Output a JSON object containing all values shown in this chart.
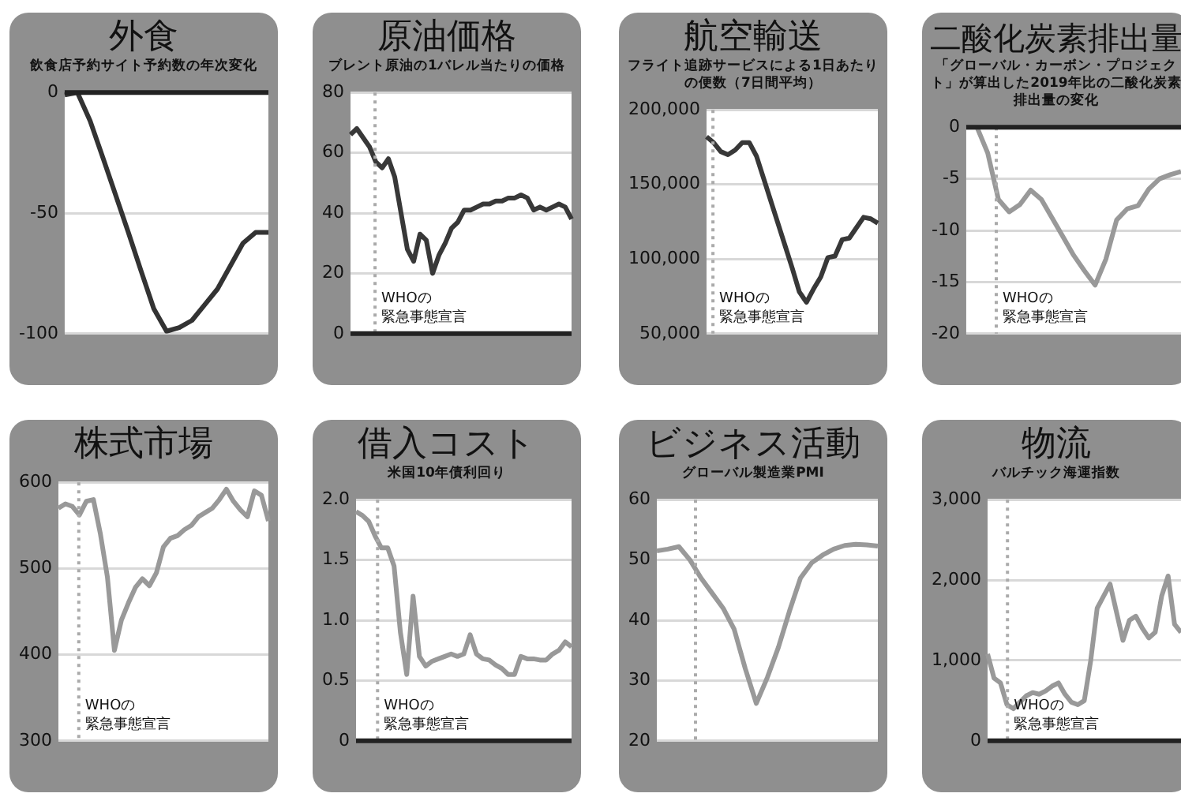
{
  "chart_data": [
    {
      "type": "line",
      "title": "外食",
      "subtitle": "飲食店予約サイト予約数の年次変化",
      "categories": [
        null,
        null,
        null,
        null,
        null,
        null,
        null,
        null,
        null,
        null,
        null,
        null,
        null,
        null,
        null,
        null,
        null
      ],
      "values": [
        -1,
        0,
        -11.8,
        -27,
        -42.5,
        -58,
        -74,
        -89.7,
        -99,
        -97.5,
        -94.5,
        -88,
        -81.5,
        -72,
        -62.5,
        -58,
        -58
      ],
      "color": "#333333",
      "ylim": [
        -100,
        0
      ],
      "yticks": [
        -100,
        -50,
        0
      ],
      "grid": "y",
      "marker": "none",
      "ref_lines": [
        {
          "axis": "y",
          "value": 0,
          "color": "#222222"
        }
      ]
    },
    {
      "type": "line",
      "title": "原油価格",
      "subtitle": "ブレント原油の1バレル当たりの価格",
      "categories": [
        null,
        null,
        null,
        null,
        null,
        null,
        null,
        null,
        null,
        null,
        null,
        null,
        null,
        null,
        null,
        null,
        null,
        null,
        null,
        null,
        null,
        null,
        null,
        null,
        null,
        null,
        null,
        null,
        null,
        null,
        null,
        null,
        null,
        null,
        null,
        null
      ],
      "values": [
        66,
        68,
        65,
        62,
        57,
        55,
        58,
        52,
        40,
        28,
        24,
        33,
        31,
        20,
        26,
        30,
        35,
        37,
        41,
        41,
        42,
        43,
        43,
        44,
        44,
        45,
        45,
        46,
        45,
        41,
        42,
        41,
        42,
        43,
        42,
        38
      ],
      "color": "#383838",
      "ylim": [
        0,
        80
      ],
      "yticks": [
        0,
        20,
        40,
        60,
        80
      ],
      "grid": "y",
      "marker": "none",
      "ref_lines": [
        {
          "axis": "y",
          "value": 0,
          "color": "#222222"
        }
      ],
      "annotations": [
        "WHOの緊急事態宣言"
      ]
    },
    {
      "type": "line",
      "title": "航空輸送",
      "subtitle": "フライト追跡サービスによる1日あたりの便数（7日間平均）",
      "categories": [
        null,
        null,
        null,
        null,
        null,
        null,
        null,
        null,
        null,
        null,
        null,
        null,
        null,
        null,
        null,
        null,
        null,
        null,
        null,
        null,
        null,
        null,
        null,
        null,
        null
      ],
      "values": [
        182000,
        178000,
        172000,
        170000,
        173000,
        178000,
        178000,
        169000,
        154000,
        139000,
        124000,
        109000,
        94000,
        78000,
        71000,
        80000,
        88000,
        101000,
        102000,
        113000,
        114000,
        121000,
        128000,
        127000,
        124000
      ],
      "color": "#383838",
      "ylim": [
        50000,
        200000
      ],
      "yticks": [
        {
          "value": 50000,
          "label": "50,000"
        },
        {
          "value": 100000,
          "label": "100,000"
        },
        {
          "value": 150000,
          "label": "150,000"
        },
        {
          "value": 200000,
          "label": "200,000"
        }
      ],
      "grid": "y",
      "marker": "none",
      "annotations": [
        "WHOの緊急事態宣言"
      ]
    },
    {
      "type": "line",
      "title": "二酸化炭素排出量",
      "subtitle": "「グローバル・カーボン・プロジェクト」が算出した2019年比の二酸化炭素排出量の変化",
      "categories": [
        null,
        null,
        null,
        null,
        null,
        null,
        null,
        null,
        null,
        null,
        null,
        null,
        null,
        null,
        null,
        null,
        null,
        null,
        null,
        null,
        null
      ],
      "values": [
        0,
        0,
        -2.5,
        -7,
        -8.2,
        -7.5,
        -6.1,
        -7,
        -8.8,
        -10.6,
        -12.4,
        -13.9,
        -15.3,
        -12.8,
        -9,
        -7.9,
        -7.6,
        -6,
        -5,
        -4.6,
        -4.3
      ],
      "color": "#999999",
      "ylim": [
        -20,
        0
      ],
      "yticks": [
        -20,
        -15,
        -10,
        -5,
        0
      ],
      "grid": "y",
      "marker": "none",
      "ref_lines": [
        {
          "axis": "y",
          "value": 0,
          "color": "#222222"
        }
      ],
      "annotations": [
        "WHOの緊急事態宣言"
      ]
    },
    {
      "type": "line",
      "title": "株式市場",
      "categories": [
        null,
        null,
        null,
        null,
        null,
        null,
        null,
        null,
        null,
        null,
        null,
        null,
        null,
        null,
        null,
        null,
        null,
        null,
        null,
        null,
        null,
        null,
        null,
        null,
        null,
        null,
        null,
        null,
        null,
        null,
        null
      ],
      "values": [
        570,
        575,
        572,
        562,
        578,
        580,
        540,
        490,
        405,
        440,
        460,
        478,
        488,
        480,
        495,
        525,
        535,
        538,
        545,
        550,
        560,
        565,
        570,
        580,
        592,
        578,
        568,
        560,
        590,
        585,
        555
      ],
      "color": "#999999",
      "ylim": [
        300,
        600
      ],
      "yticks": [
        300,
        400,
        500,
        600
      ],
      "grid": "y",
      "marker": "none",
      "annotations": [
        "WHOの緊急事態宣言"
      ]
    },
    {
      "type": "line",
      "title": "借入コスト",
      "subtitle": "米国10年債利回り",
      "categories": [
        null,
        null,
        null,
        null,
        null,
        null,
        null,
        null,
        null,
        null,
        null,
        null,
        null,
        null,
        null,
        null,
        null,
        null,
        null,
        null,
        null,
        null,
        null,
        null,
        null,
        null,
        null,
        null,
        null,
        null,
        null,
        null,
        null,
        null,
        null
      ],
      "values": [
        1.9,
        1.87,
        1.82,
        1.7,
        1.6,
        1.6,
        1.45,
        0.9,
        0.55,
        1.2,
        0.7,
        0.62,
        0.66,
        0.68,
        0.7,
        0.72,
        0.7,
        0.72,
        0.88,
        0.72,
        0.68,
        0.67,
        0.63,
        0.6,
        0.55,
        0.55,
        0.7,
        0.68,
        0.68,
        0.67,
        0.67,
        0.72,
        0.75,
        0.82,
        0.78
      ],
      "color": "#999999",
      "ylim": [
        0,
        2
      ],
      "yticks": [
        0,
        0.5,
        {
          "value": 1,
          "label": "1.0"
        },
        1.5,
        {
          "value": 2,
          "label": "2.0"
        }
      ],
      "grid": "y",
      "marker": "none",
      "ref_lines": [
        {
          "axis": "y",
          "value": 0,
          "color": "#222222"
        }
      ],
      "annotations": [
        "WHOの緊急事態宣言"
      ]
    },
    {
      "type": "line",
      "title": "ビジネス活動",
      "subtitle": "グローバル製造業PMI",
      "categories": [
        null,
        null,
        null,
        null,
        null,
        null,
        null,
        null,
        null,
        null,
        null,
        null,
        null,
        null,
        null,
        null,
        null,
        null,
        null,
        null,
        null
      ],
      "values": [
        51.5,
        51.8,
        52.2,
        50,
        47,
        44.5,
        42,
        38.5,
        32,
        26.2,
        30.5,
        35.5,
        41.5,
        47,
        49.5,
        50.8,
        51.8,
        52.4,
        52.6,
        52.5,
        52.3
      ],
      "color": "#999999",
      "ylim": [
        20,
        60
      ],
      "yticks": [
        20,
        30,
        40,
        50,
        60
      ],
      "grid": "y",
      "marker": "none"
    },
    {
      "type": "line",
      "title": "物流",
      "subtitle": "バルチック海運指数",
      "categories": [
        null,
        null,
        null,
        null,
        null,
        null,
        null,
        null,
        null,
        null,
        null,
        null,
        null,
        null,
        null,
        null,
        null,
        null,
        null,
        null,
        null,
        null,
        null,
        null,
        null,
        null,
        null,
        null,
        null,
        null,
        null
      ],
      "values": [
        1080,
        780,
        720,
        450,
        400,
        480,
        560,
        600,
        580,
        620,
        680,
        720,
        580,
        480,
        450,
        500,
        1000,
        1650,
        1800,
        1950,
        1600,
        1250,
        1500,
        1550,
        1400,
        1280,
        1350,
        1800,
        2050,
        1450,
        1350
      ],
      "color": "#999999",
      "ylim": [
        0,
        3000
      ],
      "yticks": [
        0,
        {
          "value": 1000,
          "label": "1,000"
        },
        {
          "value": 2000,
          "label": "2,000"
        },
        {
          "value": 3000,
          "label": "3,000"
        }
      ],
      "grid": "y",
      "marker": "none",
      "ref_lines": [
        {
          "axis": "y",
          "value": 0,
          "color": "#222222"
        }
      ],
      "annotations": [
        "WHOの緊急事態宣言"
      ]
    }
  ]
}
